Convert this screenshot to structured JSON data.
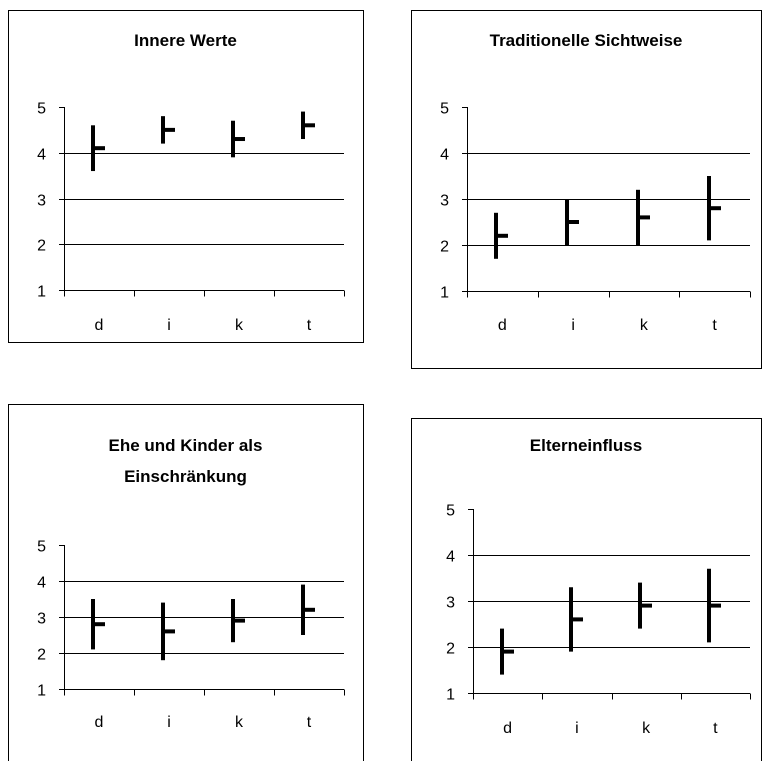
{
  "chart_data": [
    {
      "type": "bar",
      "title": "Innere Werte",
      "categories": [
        "d",
        "i",
        "k",
        "t"
      ],
      "ylim": [
        1,
        5
      ],
      "yticks": [
        "1",
        "2",
        "3",
        "4",
        "5"
      ],
      "grid": true,
      "series": [
        {
          "low": [
            3.6,
            4.2,
            3.9,
            4.3
          ],
          "high": [
            4.6,
            4.8,
            4.7,
            4.9
          ],
          "mean": [
            4.1,
            4.5,
            4.3,
            4.6
          ]
        }
      ]
    },
    {
      "type": "bar",
      "title": "Traditionelle Sichtweise",
      "categories": [
        "d",
        "i",
        "k",
        "t"
      ],
      "ylim": [
        1,
        5
      ],
      "yticks": [
        "1",
        "2",
        "3",
        "4",
        "5"
      ],
      "grid": true,
      "series": [
        {
          "low": [
            1.7,
            2.0,
            2.0,
            2.1
          ],
          "high": [
            2.7,
            3.0,
            3.2,
            3.5
          ],
          "mean": [
            2.2,
            2.5,
            2.6,
            2.8
          ]
        }
      ]
    },
    {
      "type": "bar",
      "title": "Ehe und Kinder als Einschränkung",
      "title_lines": [
        "Ehe und Kinder als",
        "Einschränkung"
      ],
      "categories": [
        "d",
        "i",
        "k",
        "t"
      ],
      "ylim": [
        1,
        5
      ],
      "yticks": [
        "1",
        "2",
        "3",
        "4",
        "5"
      ],
      "grid": true,
      "series": [
        {
          "low": [
            2.1,
            1.8,
            2.3,
            2.5
          ],
          "high": [
            3.5,
            3.4,
            3.5,
            3.9
          ],
          "mean": [
            2.8,
            2.6,
            2.9,
            3.2
          ]
        }
      ]
    },
    {
      "type": "bar",
      "title": "Elterneinfluss",
      "categories": [
        "d",
        "i",
        "k",
        "t"
      ],
      "ylim": [
        1,
        5
      ],
      "yticks": [
        "1",
        "2",
        "3",
        "4",
        "5"
      ],
      "grid": true,
      "series": [
        {
          "low": [
            1.4,
            1.9,
            2.4,
            2.1
          ],
          "high": [
            2.4,
            3.3,
            3.4,
            3.7
          ],
          "mean": [
            1.9,
            2.6,
            2.9,
            2.9
          ]
        }
      ]
    }
  ]
}
